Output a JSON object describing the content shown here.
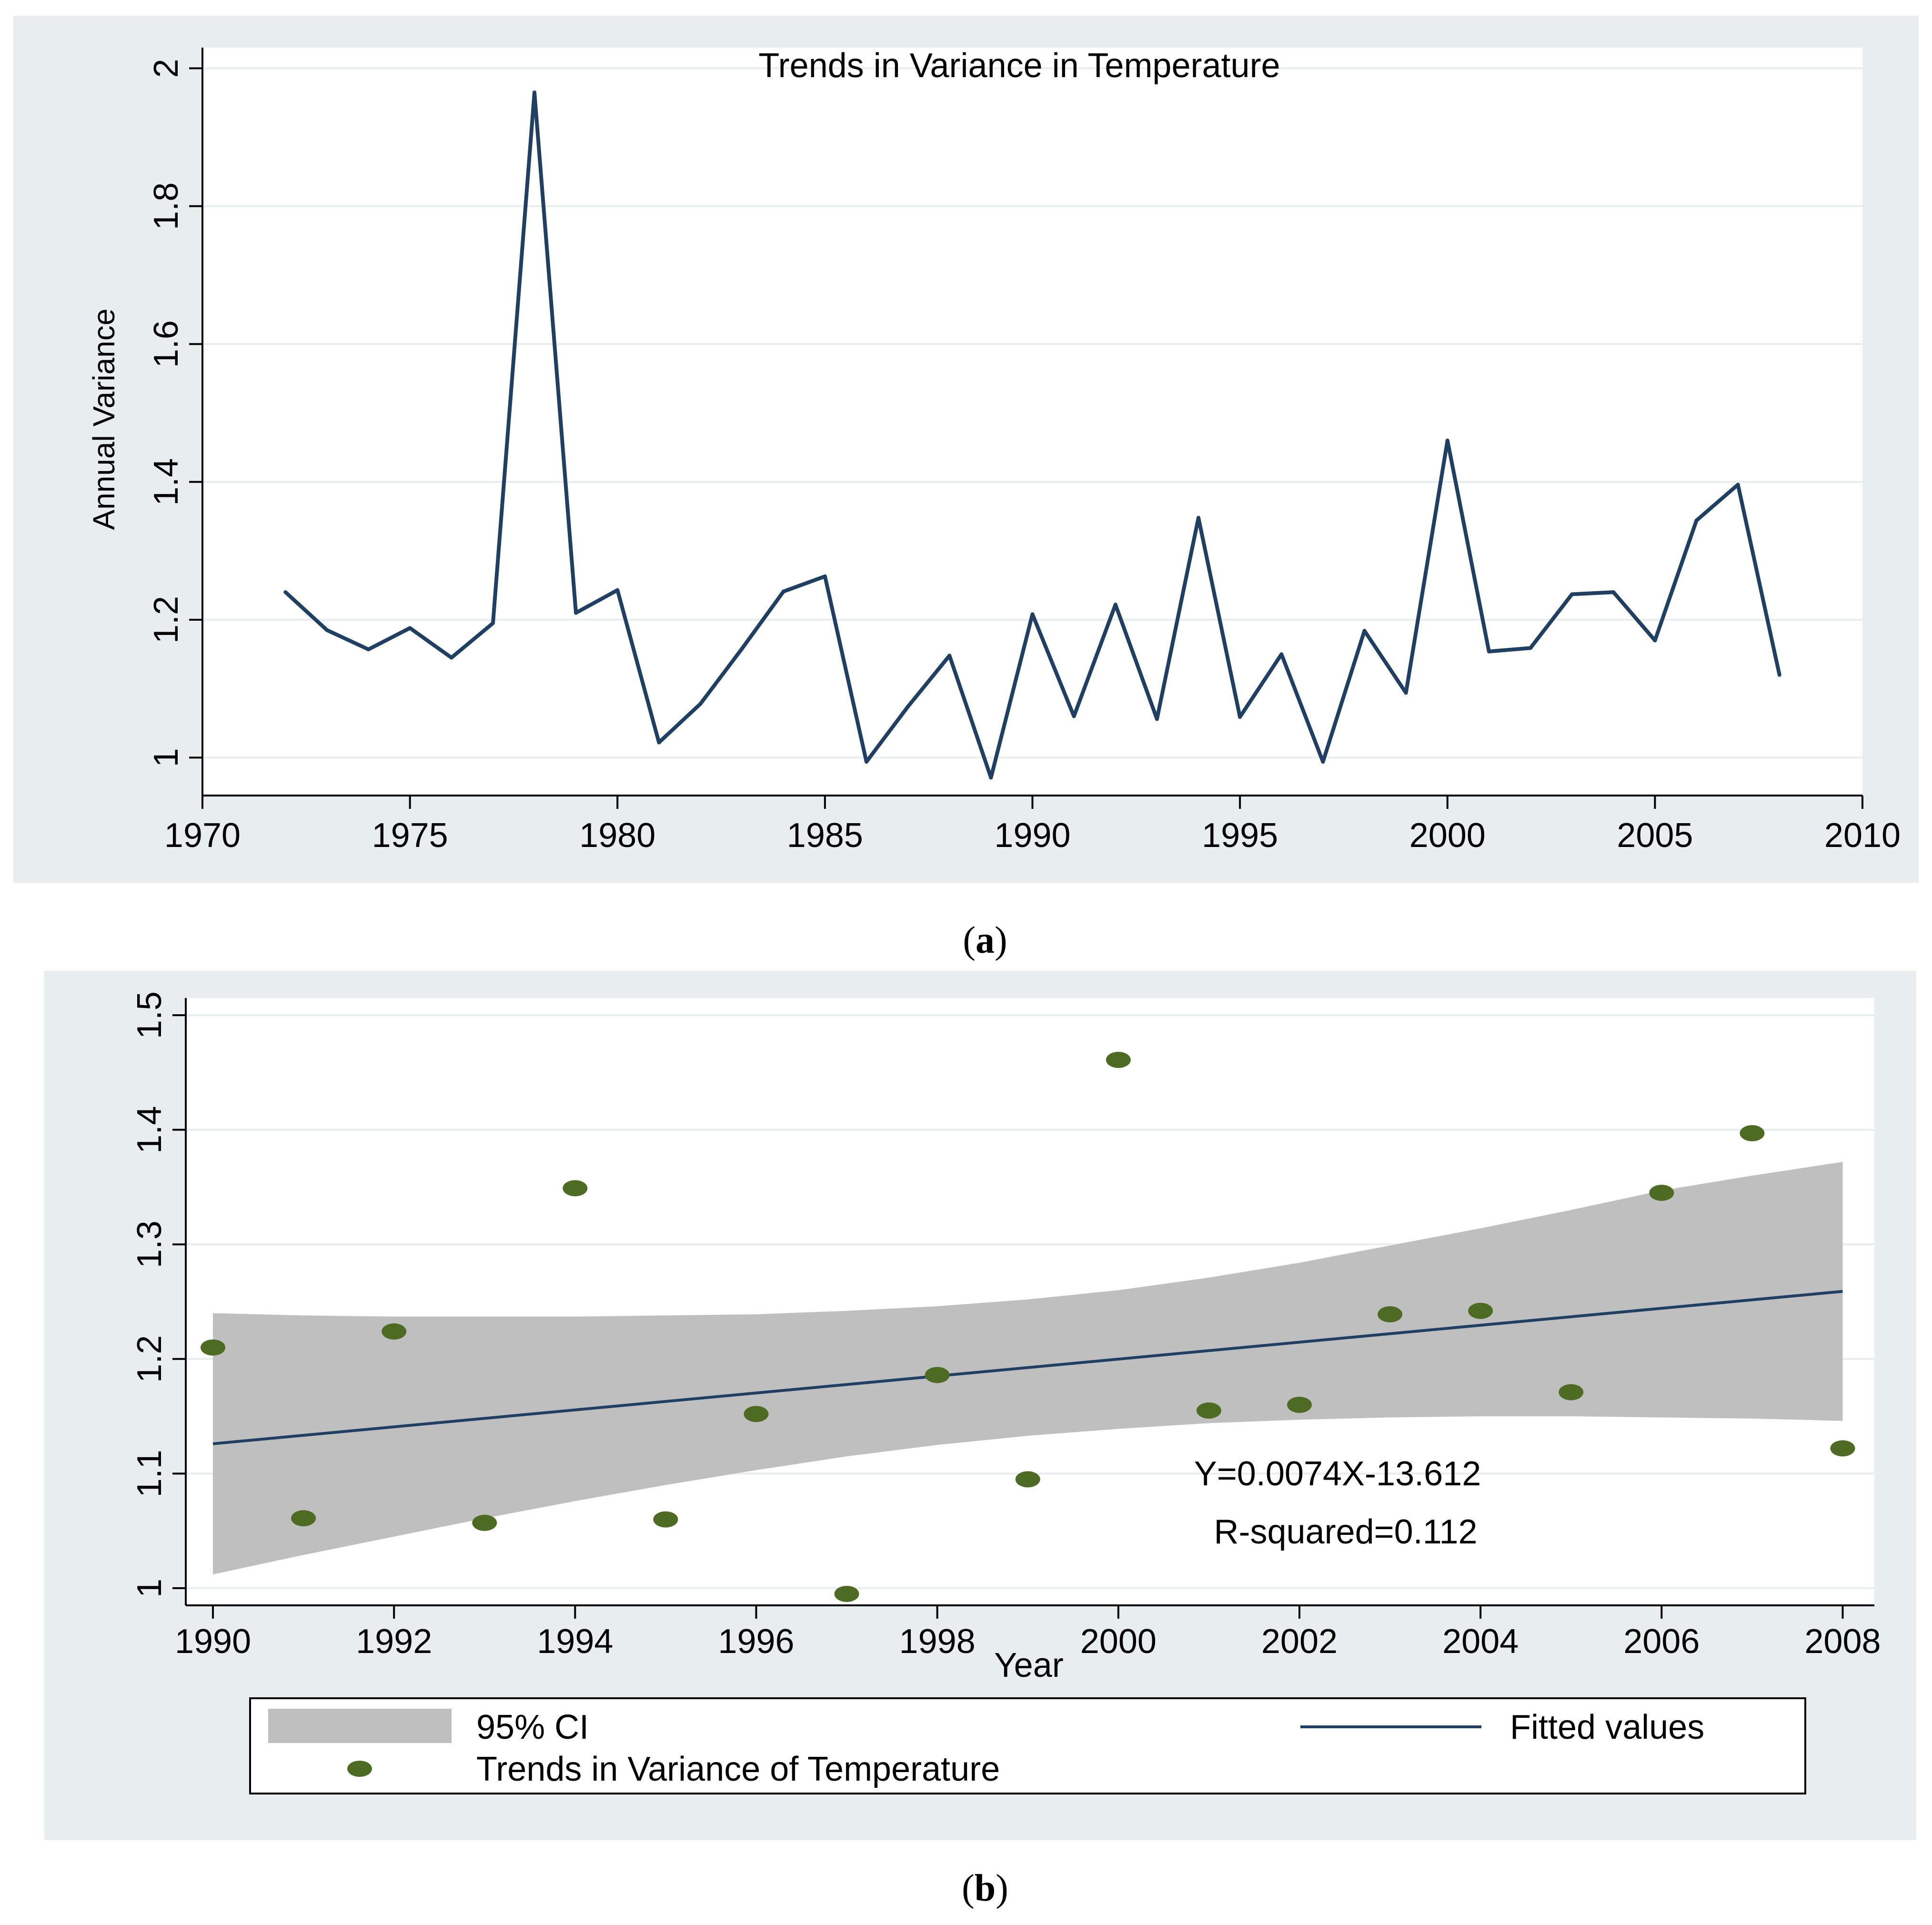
{
  "panel_a_label": {
    "open": "(",
    "letter": "a",
    "close": ")"
  },
  "panel_b_label": {
    "open": "(",
    "letter": "b",
    "close": ")"
  },
  "colors": {
    "outer_bg": "#e8eef0",
    "plot_bg": "#ffffff",
    "grid": "#e8eef0",
    "line": "#1f3f63",
    "ci_fill": "#bfbfbf",
    "marker": "#4e6b23"
  },
  "chart_data": [
    {
      "type": "line",
      "title": "Trends in Variance in Temperature",
      "xlabel": "",
      "ylabel": "Annual Variance",
      "xlim": [
        1970,
        2010
      ],
      "ylim": [
        0.945,
        2.03
      ],
      "xticks": [
        1970,
        1975,
        1980,
        1985,
        1990,
        1995,
        2000,
        2005,
        2010
      ],
      "yticks": [
        1,
        1.2,
        1.4,
        1.6,
        1.8,
        2
      ],
      "ytick_labels": [
        "1",
        "1.2",
        "1.4",
        "1.6",
        "1.8",
        "2"
      ],
      "grid": true,
      "x": [
        1972,
        1973,
        1974,
        1975,
        1976,
        1977,
        1978,
        1979,
        1980,
        1981,
        1982,
        1983,
        1984,
        1985,
        1986,
        1987,
        1988,
        1989,
        1990,
        1991,
        1992,
        1993,
        1994,
        1995,
        1996,
        1997,
        1998,
        1999,
        2000,
        2001,
        2002,
        2003,
        2004,
        2005,
        2006,
        2007,
        2008
      ],
      "y": [
        1.24,
        1.185,
        1.157,
        1.188,
        1.145,
        1.195,
        1.965,
        1.21,
        1.243,
        1.022,
        1.078,
        1.158,
        1.241,
        1.263,
        0.994,
        1.074,
        1.148,
        0.971,
        1.208,
        1.06,
        1.222,
        1.056,
        1.348,
        1.059,
        1.15,
        0.994,
        1.184,
        1.094,
        1.46,
        1.154,
        1.159,
        1.237,
        1.24,
        1.17,
        1.344,
        1.396,
        1.12
      ]
    },
    {
      "type": "scatter",
      "title": "",
      "xlabel": "Year",
      "ylabel": "",
      "xlim": [
        1989.7,
        2008.35
      ],
      "ylim": [
        0.985,
        1.515
      ],
      "xticks": [
        1990,
        1992,
        1994,
        1996,
        1998,
        2000,
        2002,
        2004,
        2006,
        2008
      ],
      "yticks": [
        1,
        1.1,
        1.2,
        1.3,
        1.4,
        1.5
      ],
      "ytick_labels": [
        "1",
        "1.1",
        "1.2",
        "1.3",
        "1.4",
        "1.5"
      ],
      "grid": true,
      "series": [
        {
          "name": "Trends in Variance of Temperature",
          "kind": "scatter",
          "x": [
            1990,
            1991,
            1992,
            1993,
            1994,
            1995,
            1996,
            1997,
            1998,
            1999,
            2000,
            2001,
            2002,
            2003,
            2004,
            2005,
            2006,
            2007,
            2008
          ],
          "y": [
            1.21,
            1.061,
            1.224,
            1.057,
            1.349,
            1.06,
            1.152,
            0.995,
            1.186,
            1.095,
            1.461,
            1.155,
            1.16,
            1.239,
            1.242,
            1.171,
            1.345,
            1.397,
            1.122
          ]
        },
        {
          "name": "Fitted values",
          "kind": "line",
          "x": [
            1990,
            2008
          ],
          "y": [
            1.126,
            1.259
          ]
        },
        {
          "name": "95% CI",
          "kind": "band",
          "x": [
            1990,
            1991,
            1992,
            1993,
            1994,
            1995,
            1996,
            1997,
            1998,
            1999,
            2000,
            2001,
            2002,
            2003,
            2004,
            2005,
            2006,
            2007,
            2008
          ],
          "lower": [
            1.012,
            1.029,
            1.045,
            1.061,
            1.076,
            1.09,
            1.103,
            1.115,
            1.125,
            1.133,
            1.139,
            1.144,
            1.147,
            1.149,
            1.15,
            1.15,
            1.149,
            1.148,
            1.146
          ],
          "upper": [
            1.24,
            1.238,
            1.237,
            1.237,
            1.237,
            1.238,
            1.239,
            1.242,
            1.246,
            1.252,
            1.26,
            1.271,
            1.284,
            1.299,
            1.314,
            1.33,
            1.347,
            1.36,
            1.372
          ]
        }
      ],
      "annotations": [
        "Y=0.0074X-13.612",
        "R-squared=0.112"
      ],
      "legend": [
        "95% CI",
        "Fitted values",
        "Trends in Variance of Temperature"
      ]
    }
  ]
}
